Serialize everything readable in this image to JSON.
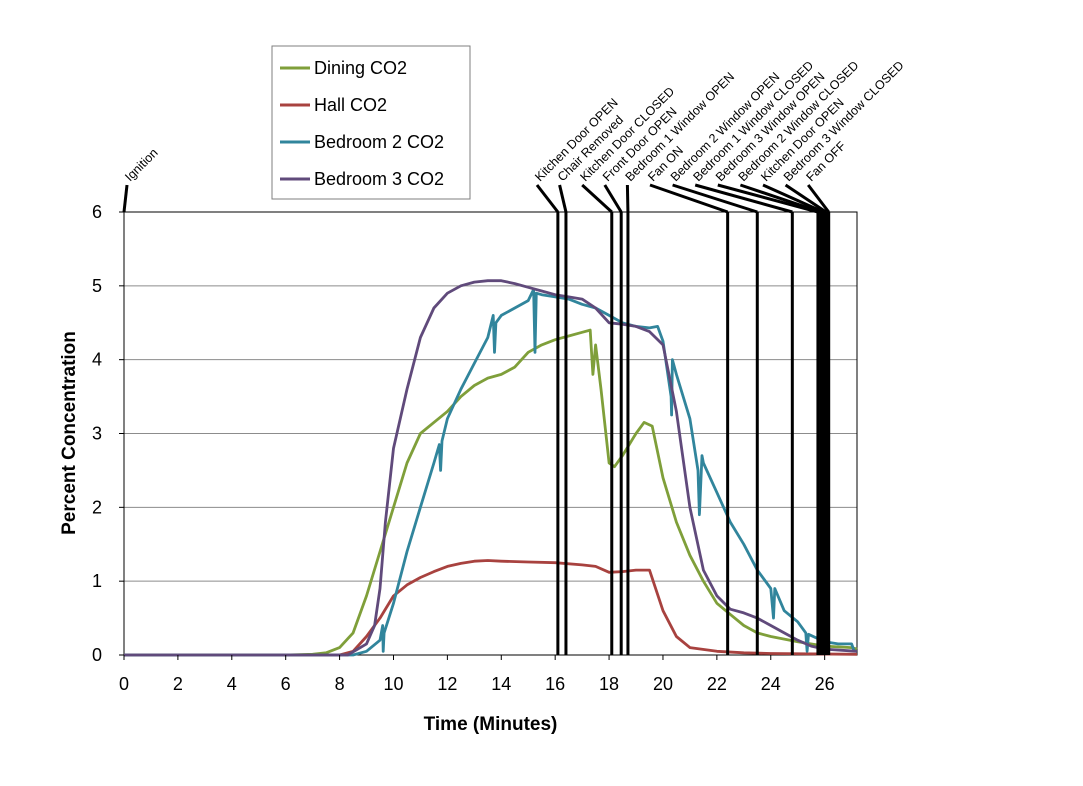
{
  "chart_data": {
    "type": "line",
    "title": "",
    "xlabel": "Time (Minutes)",
    "ylabel": "Percent Concentration",
    "xlim": [
      0,
      27.2
    ],
    "ylim": [
      0,
      6
    ],
    "xticks": [
      0,
      2,
      4,
      6,
      8,
      10,
      12,
      14,
      16,
      18,
      20,
      22,
      24,
      26
    ],
    "yticks": [
      0,
      1,
      2,
      3,
      4,
      5,
      6
    ],
    "grid": "horizontal",
    "legend_position": "top-left",
    "series": [
      {
        "name": "Dining CO2",
        "color": "#7f9f3a",
        "points": [
          [
            0,
            0
          ],
          [
            6,
            0
          ],
          [
            7,
            0.01
          ],
          [
            7.5,
            0.03
          ],
          [
            8,
            0.1
          ],
          [
            8.5,
            0.3
          ],
          [
            9,
            0.8
          ],
          [
            9.5,
            1.4
          ],
          [
            10,
            2.0
          ],
          [
            10.5,
            2.6
          ],
          [
            11,
            3.0
          ],
          [
            11.5,
            3.15
          ],
          [
            12,
            3.3
          ],
          [
            12.5,
            3.5
          ],
          [
            13,
            3.65
          ],
          [
            13.5,
            3.75
          ],
          [
            14,
            3.8
          ],
          [
            14.5,
            3.9
          ],
          [
            15,
            4.1
          ],
          [
            15.5,
            4.2
          ],
          [
            16,
            4.27
          ],
          [
            16.5,
            4.32
          ],
          [
            17,
            4.37
          ],
          [
            17.3,
            4.4
          ],
          [
            17.4,
            3.8
          ],
          [
            17.5,
            4.2
          ],
          [
            17.7,
            3.6
          ],
          [
            18,
            2.6
          ],
          [
            18.2,
            2.55
          ],
          [
            18.5,
            2.7
          ],
          [
            19,
            3.0
          ],
          [
            19.3,
            3.15
          ],
          [
            19.6,
            3.1
          ],
          [
            20,
            2.4
          ],
          [
            20.5,
            1.8
          ],
          [
            21,
            1.35
          ],
          [
            21.5,
            1.0
          ],
          [
            22,
            0.7
          ],
          [
            22.5,
            0.55
          ],
          [
            23,
            0.4
          ],
          [
            23.5,
            0.3
          ],
          [
            24,
            0.25
          ],
          [
            25,
            0.18
          ],
          [
            26,
            0.12
          ],
          [
            27,
            0.1
          ],
          [
            27.2,
            0.08
          ]
        ]
      },
      {
        "name": "Hall CO2",
        "color": "#a8423f",
        "points": [
          [
            0,
            0
          ],
          [
            8,
            0
          ],
          [
            8.5,
            0.05
          ],
          [
            9,
            0.25
          ],
          [
            9.5,
            0.5
          ],
          [
            10,
            0.8
          ],
          [
            10.5,
            0.95
          ],
          [
            11,
            1.05
          ],
          [
            11.5,
            1.13
          ],
          [
            12,
            1.2
          ],
          [
            12.5,
            1.24
          ],
          [
            13,
            1.27
          ],
          [
            13.5,
            1.28
          ],
          [
            14,
            1.27
          ],
          [
            15,
            1.26
          ],
          [
            16,
            1.25
          ],
          [
            17,
            1.22
          ],
          [
            17.5,
            1.2
          ],
          [
            18,
            1.12
          ],
          [
            18.5,
            1.13
          ],
          [
            19,
            1.15
          ],
          [
            19.5,
            1.15
          ],
          [
            20,
            0.6
          ],
          [
            20.5,
            0.25
          ],
          [
            21,
            0.1
          ],
          [
            22,
            0.05
          ],
          [
            23,
            0.03
          ],
          [
            24,
            0.02
          ],
          [
            27.2,
            0.01
          ]
        ]
      },
      {
        "name": "Bedroom 2 CO2",
        "color": "#31859c",
        "points": [
          [
            0,
            0
          ],
          [
            8.5,
            0
          ],
          [
            9,
            0.05
          ],
          [
            9.5,
            0.2
          ],
          [
            9.6,
            0.4
          ],
          [
            9.62,
            0.05
          ],
          [
            9.65,
            0.3
          ],
          [
            10,
            0.7
          ],
          [
            10.5,
            1.4
          ],
          [
            11,
            2.0
          ],
          [
            11.5,
            2.6
          ],
          [
            11.7,
            2.85
          ],
          [
            11.75,
            2.5
          ],
          [
            11.8,
            2.9
          ],
          [
            12,
            3.2
          ],
          [
            12.5,
            3.6
          ],
          [
            13,
            3.95
          ],
          [
            13.5,
            4.3
          ],
          [
            13.7,
            4.6
          ],
          [
            13.75,
            4.1
          ],
          [
            13.8,
            4.5
          ],
          [
            14,
            4.6
          ],
          [
            14.5,
            4.7
          ],
          [
            15,
            4.8
          ],
          [
            15.2,
            4.95
          ],
          [
            15.25,
            4.1
          ],
          [
            15.3,
            4.9
          ],
          [
            15.5,
            4.88
          ],
          [
            16,
            4.85
          ],
          [
            16.5,
            4.82
          ],
          [
            17,
            4.75
          ],
          [
            17.5,
            4.7
          ],
          [
            18,
            4.6
          ],
          [
            18.5,
            4.5
          ],
          [
            19,
            4.45
          ],
          [
            19.5,
            4.43
          ],
          [
            19.8,
            4.45
          ],
          [
            20,
            4.25
          ],
          [
            20.3,
            3.5
          ],
          [
            20.32,
            3.25
          ],
          [
            20.35,
            4.0
          ],
          [
            20.5,
            3.8
          ],
          [
            21,
            3.2
          ],
          [
            21.3,
            2.5
          ],
          [
            21.35,
            1.9
          ],
          [
            21.45,
            2.7
          ],
          [
            21.5,
            2.6
          ],
          [
            22,
            2.2
          ],
          [
            22.5,
            1.8
          ],
          [
            23,
            1.5
          ],
          [
            23.5,
            1.15
          ],
          [
            24,
            0.9
          ],
          [
            24.1,
            0.5
          ],
          [
            24.15,
            0.9
          ],
          [
            24.5,
            0.6
          ],
          [
            25,
            0.45
          ],
          [
            25.3,
            0.3
          ],
          [
            25.35,
            0.05
          ],
          [
            25.4,
            0.28
          ],
          [
            26,
            0.18
          ],
          [
            26.5,
            0.15
          ],
          [
            27,
            0.15
          ],
          [
            27.1,
            0.05
          ]
        ]
      },
      {
        "name": "Bedroom 3 CO2",
        "color": "#604a7b",
        "points": [
          [
            0,
            0
          ],
          [
            8.3,
            0
          ],
          [
            9,
            0.15
          ],
          [
            9.3,
            0.4
          ],
          [
            9.5,
            0.9
          ],
          [
            9.7,
            1.8
          ],
          [
            10,
            2.8
          ],
          [
            10.5,
            3.6
          ],
          [
            11,
            4.3
          ],
          [
            11.5,
            4.7
          ],
          [
            12,
            4.9
          ],
          [
            12.5,
            5.0
          ],
          [
            13,
            5.05
          ],
          [
            13.5,
            5.07
          ],
          [
            14,
            5.07
          ],
          [
            14.5,
            5.03
          ],
          [
            15,
            4.98
          ],
          [
            15.5,
            4.93
          ],
          [
            16,
            4.88
          ],
          [
            16.5,
            4.85
          ],
          [
            17,
            4.82
          ],
          [
            17.5,
            4.7
          ],
          [
            18,
            4.5
          ],
          [
            18.5,
            4.48
          ],
          [
            19,
            4.45
          ],
          [
            19.5,
            4.38
          ],
          [
            20,
            4.2
          ],
          [
            20.5,
            3.3
          ],
          [
            21,
            2.0
          ],
          [
            21.5,
            1.15
          ],
          [
            22,
            0.8
          ],
          [
            22.5,
            0.62
          ],
          [
            23,
            0.57
          ],
          [
            23.5,
            0.5
          ],
          [
            24,
            0.4
          ],
          [
            24.5,
            0.3
          ],
          [
            25,
            0.2
          ],
          [
            25.5,
            0.12
          ],
          [
            26,
            0.08
          ],
          [
            27.2,
            0.05
          ]
        ]
      }
    ],
    "events": [
      {
        "time": 0,
        "label": "Ignition"
      },
      {
        "time": 16.1,
        "label": "Kitchen Door OPEN"
      },
      {
        "time": 16.4,
        "label": "Chair Removed"
      },
      {
        "time": 18.1,
        "label": "Kitchen Door CLOSED"
      },
      {
        "time": 18.45,
        "label": "Front Door OPEN"
      },
      {
        "time": 18.7,
        "label": "Bedroom 1 Window OPEN"
      },
      {
        "time": 22.4,
        "label": "Fan ON"
      },
      {
        "time": 23.5,
        "label": "Bedroom 2 Window OPEN"
      },
      {
        "time": 24.8,
        "label": "Bedroom 1 Window CLOSED"
      },
      {
        "time": 25.75,
        "label": "Bedroom 3 Window OPEN"
      },
      {
        "time": 25.85,
        "label": "Bedroom 2 Window CLOSED"
      },
      {
        "time": 25.95,
        "label": "Kitchen Door OPEN"
      },
      {
        "time": 26.05,
        "label": "Bedroom 3 Window CLOSED"
      },
      {
        "time": 26.15,
        "label": "Fan OFF"
      }
    ]
  }
}
